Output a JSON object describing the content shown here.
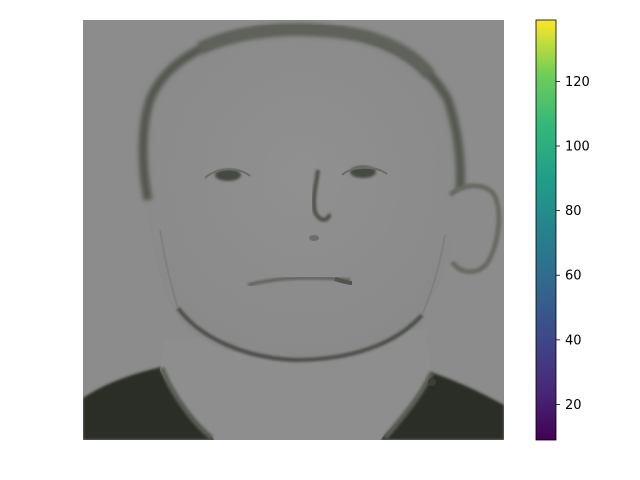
{
  "chart_data": {
    "type": "heatmap",
    "title": "",
    "xlabel": "",
    "ylabel": "",
    "image_axes": "off",
    "image_content": "grayscale face image",
    "colormap": "viridis",
    "colorbar": {
      "vmin": 9,
      "vmax": 139,
      "ticks": [
        20,
        40,
        60,
        80,
        100,
        120
      ],
      "tick_labels": [
        "20",
        "40",
        "60",
        "80",
        "100",
        "120"
      ],
      "placement": "right"
    }
  }
}
